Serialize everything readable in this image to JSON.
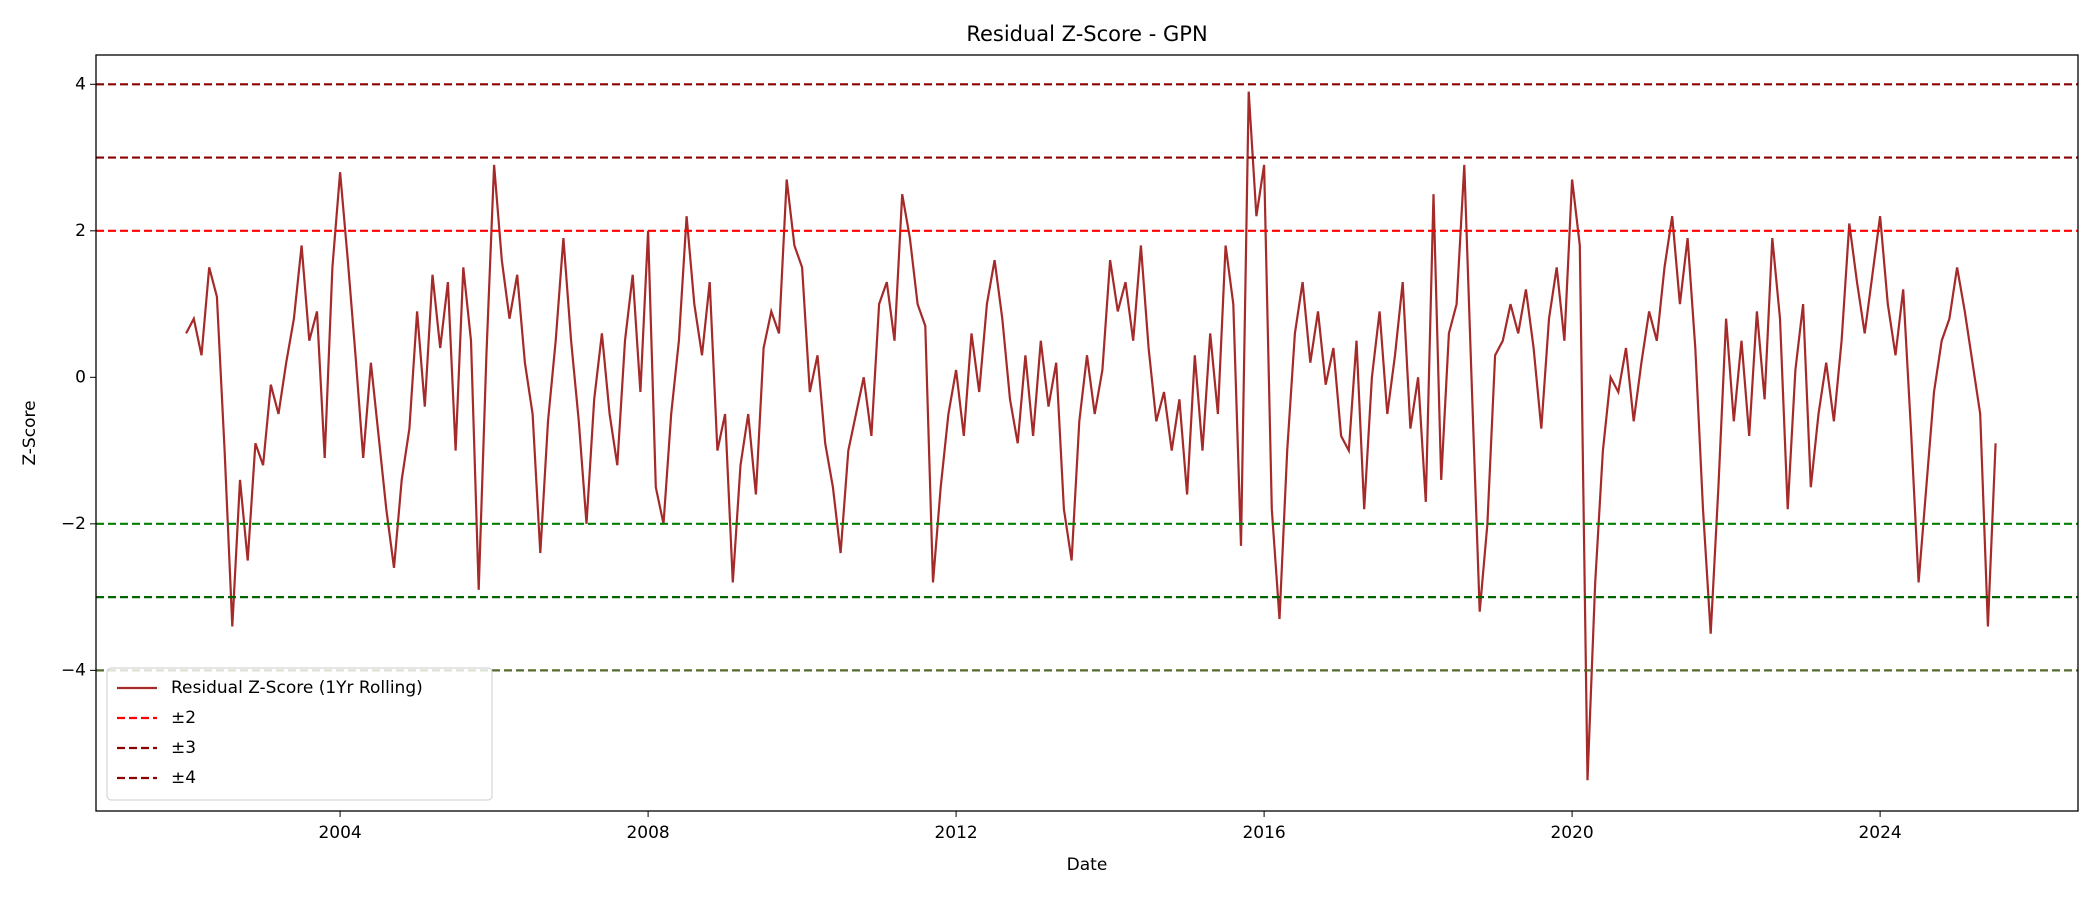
{
  "chart_data": {
    "type": "line",
    "title": "Residual Z-Score - GPN",
    "x_label": "Date",
    "y_label": "Z-Score",
    "xlim": [
      2000.83,
      2026.57
    ],
    "ylim": [
      -5.92,
      4.4
    ],
    "xticks": [
      2004,
      2008,
      2012,
      2016,
      2020,
      2024
    ],
    "yticks": [
      {
        "value": -4,
        "label": "−4"
      },
      {
        "value": -2,
        "label": "−2"
      },
      0,
      2,
      4
    ],
    "legend": "lower left",
    "x": [
      2002.0,
      2002.1,
      2002.2,
      2002.3,
      2002.4,
      2002.5,
      2002.6,
      2002.7,
      2002.8,
      2002.9,
      2003.0,
      2003.1,
      2003.2,
      2003.3,
      2003.4,
      2003.5,
      2003.6,
      2003.7,
      2003.8,
      2003.9,
      2004.0,
      2004.1,
      2004.2,
      2004.3,
      2004.4,
      2004.5,
      2004.6,
      2004.7,
      2004.8,
      2004.9,
      2005.0,
      2005.1,
      2005.2,
      2005.3,
      2005.4,
      2005.5,
      2005.6,
      2005.7,
      2005.8,
      2005.9,
      2006.0,
      2006.1,
      2006.2,
      2006.3,
      2006.4,
      2006.5,
      2006.6,
      2006.7,
      2006.8,
      2006.9,
      2007.0,
      2007.1,
      2007.2,
      2007.3,
      2007.4,
      2007.5,
      2007.6,
      2007.7,
      2007.8,
      2007.9,
      2008.0,
      2008.1,
      2008.2,
      2008.3,
      2008.4,
      2008.5,
      2008.6,
      2008.7,
      2008.8,
      2008.9,
      2009.0,
      2009.1,
      2009.2,
      2009.3,
      2009.4,
      2009.5,
      2009.6,
      2009.7,
      2009.8,
      2009.9,
      2010.0,
      2010.1,
      2010.2,
      2010.3,
      2010.4,
      2010.5,
      2010.6,
      2010.7,
      2010.8,
      2010.9,
      2011.0,
      2011.1,
      2011.2,
      2011.3,
      2011.4,
      2011.5,
      2011.6,
      2011.7,
      2011.8,
      2011.9,
      2012.0,
      2012.1,
      2012.2,
      2012.3,
      2012.4,
      2012.5,
      2012.6,
      2012.7,
      2012.8,
      2012.9,
      2013.0,
      2013.1,
      2013.2,
      2013.3,
      2013.4,
      2013.5,
      2013.6,
      2013.7,
      2013.8,
      2013.9,
      2014.0,
      2014.1,
      2014.2,
      2014.3,
      2014.4,
      2014.5,
      2014.6,
      2014.7,
      2014.8,
      2014.9,
      2015.0,
      2015.1,
      2015.2,
      2015.3,
      2015.4,
      2015.5,
      2015.6,
      2015.7,
      2015.8,
      2015.9,
      2016.0,
      2016.1,
      2016.2,
      2016.3,
      2016.4,
      2016.5,
      2016.6,
      2016.7,
      2016.8,
      2016.9,
      2017.0,
      2017.1,
      2017.2,
      2017.3,
      2017.4,
      2017.5,
      2017.6,
      2017.7,
      2017.8,
      2017.9,
      2018.0,
      2018.1,
      2018.2,
      2018.3,
      2018.4,
      2018.5,
      2018.6,
      2018.7,
      2018.8,
      2018.9,
      2019.0,
      2019.1,
      2019.2,
      2019.3,
      2019.4,
      2019.5,
      2019.6,
      2019.7,
      2019.8,
      2019.9,
      2020.0,
      2020.1,
      2020.2,
      2020.3,
      2020.4,
      2020.5,
      2020.6,
      2020.7,
      2020.8,
      2020.9,
      2021.0,
      2021.1,
      2021.2,
      2021.3,
      2021.4,
      2021.5,
      2021.6,
      2021.7,
      2021.8,
      2021.9,
      2022.0,
      2022.1,
      2022.2,
      2022.3,
      2022.4,
      2022.5,
      2022.6,
      2022.7,
      2022.8,
      2022.9,
      2023.0,
      2023.1,
      2023.2,
      2023.3,
      2023.4,
      2023.5,
      2023.6,
      2023.7,
      2023.8,
      2023.9,
      2024.0,
      2024.1,
      2024.2,
      2024.3,
      2024.4,
      2024.5,
      2024.6,
      2024.7,
      2024.8,
      2024.9,
      2025.0,
      2025.1,
      2025.2,
      2025.3,
      2025.4,
      2025.5
    ],
    "series": [
      {
        "name": "Residual Z-Score (1Yr Rolling)",
        "color": "#a52a2a",
        "values": [
          0.6,
          0.8,
          0.3,
          1.5,
          1.1,
          -1.0,
          -3.4,
          -1.4,
          -2.5,
          -0.9,
          -1.2,
          -0.1,
          -0.5,
          0.2,
          0.8,
          1.8,
          0.5,
          0.9,
          -1.1,
          1.5,
          2.8,
          1.6,
          0.3,
          -1.1,
          0.2,
          -0.8,
          -1.8,
          -2.6,
          -1.4,
          -0.7,
          0.9,
          -0.4,
          1.4,
          0.4,
          1.3,
          -1.0,
          1.5,
          0.5,
          -2.9,
          0.3,
          2.9,
          1.6,
          0.8,
          1.4,
          0.2,
          -0.5,
          -2.4,
          -0.6,
          0.5,
          1.9,
          0.5,
          -0.6,
          -2.0,
          -0.3,
          0.6,
          -0.5,
          -1.2,
          0.5,
          1.4,
          -0.2,
          2.0,
          -1.5,
          -2.0,
          -0.5,
          0.5,
          2.2,
          1.0,
          0.3,
          1.3,
          -1.0,
          -0.5,
          -2.8,
          -1.2,
          -0.5,
          -1.6,
          0.4,
          0.9,
          0.6,
          2.7,
          1.8,
          1.5,
          -0.2,
          0.3,
          -0.9,
          -1.5,
          -2.4,
          -1.0,
          -0.5,
          0.0,
          -0.8,
          1.0,
          1.3,
          0.5,
          2.5,
          1.9,
          1.0,
          0.7,
          -2.8,
          -1.5,
          -0.5,
          0.1,
          -0.8,
          0.6,
          -0.2,
          1.0,
          1.6,
          0.8,
          -0.3,
          -0.9,
          0.3,
          -0.8,
          0.5,
          -0.4,
          0.2,
          -1.8,
          -2.5,
          -0.6,
          0.3,
          -0.5,
          0.1,
          1.6,
          0.9,
          1.3,
          0.5,
          1.8,
          0.4,
          -0.6,
          -0.2,
          -1.0,
          -0.3,
          -1.6,
          0.3,
          -1.0,
          0.6,
          -0.5,
          1.8,
          1.0,
          -2.3,
          3.9,
          2.2,
          2.9,
          -1.8,
          -3.3,
          -1.0,
          0.6,
          1.3,
          0.2,
          0.9,
          -0.1,
          0.4,
          -0.8,
          -1.0,
          0.5,
          -1.8,
          0.0,
          0.9,
          -0.5,
          0.3,
          1.3,
          -0.7,
          0.0,
          -1.7,
          2.5,
          -1.4,
          0.6,
          1.0,
          2.9,
          -0.2,
          -3.2,
          -2.0,
          0.3,
          0.5,
          1.0,
          0.6,
          1.2,
          0.4,
          -0.7,
          0.8,
          1.5,
          0.5,
          2.7,
          1.8,
          -5.5,
          -2.8,
          -1.0,
          0.0,
          -0.2,
          0.4,
          -0.6,
          0.2,
          0.9,
          0.5,
          1.5,
          2.2,
          1.0,
          1.9,
          0.4,
          -1.8,
          -3.5,
          -1.5,
          0.8,
          -0.6,
          0.5,
          -0.8,
          0.9,
          -0.3,
          1.9,
          0.8,
          -1.8,
          0.1,
          1.0,
          -1.5,
          -0.5,
          0.2,
          -0.6,
          0.5,
          2.1,
          1.3,
          0.6,
          1.4,
          2.2,
          1.0,
          0.3,
          1.2,
          -0.7,
          -2.8,
          -1.5,
          -0.2,
          0.5,
          0.8,
          1.5,
          0.9,
          0.2,
          -0.5,
          -3.4,
          -0.9
        ]
      }
    ],
    "hlines": [
      {
        "value": 2,
        "color": "#ff0000",
        "name": "±2"
      },
      {
        "value": -2,
        "color": "#008000"
      },
      {
        "value": 3,
        "color": "#8b0000",
        "name": "±3"
      },
      {
        "value": -3,
        "color": "#006400"
      },
      {
        "value": 4,
        "color": "#8b0000",
        "name": "±4"
      },
      {
        "value": -4,
        "color": "#556b2f"
      }
    ]
  }
}
